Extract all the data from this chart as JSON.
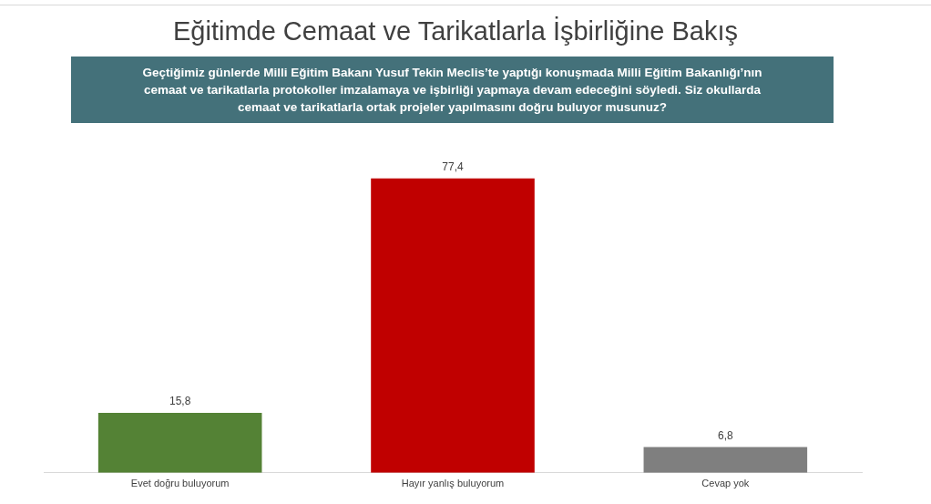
{
  "chart_data": {
    "type": "bar",
    "title": "Eğitimde Cemaat ve Tarikatlarla İşbirliğine Bakış",
    "subtitle": "Geçtiğimiz günlerde Milli Eğitim Bakanı Yusuf Tekin Meclis’te yaptığı konuşmada Milli Eğitim Bakanlığı’nın cemaat ve tarikatlarla protokoller imzalamaya ve işbirliği yapmaya devam edeceğini söyledi. Siz okullarda cemaat ve tarikatlarla ortak projeler yapılmasını doğru buluyor musunuz?",
    "categories": [
      "Evet doğru buluyorum",
      "Hayır yanlış buluyorum",
      "Cevap yok"
    ],
    "values": [
      15.8,
      77.4,
      6.8
    ],
    "colors": [
      "#548235",
      "#c00000",
      "#7f7f7f"
    ],
    "value_labels": [
      "15,8",
      "77,4",
      "6,8"
    ],
    "grid": false,
    "legend": false
  }
}
